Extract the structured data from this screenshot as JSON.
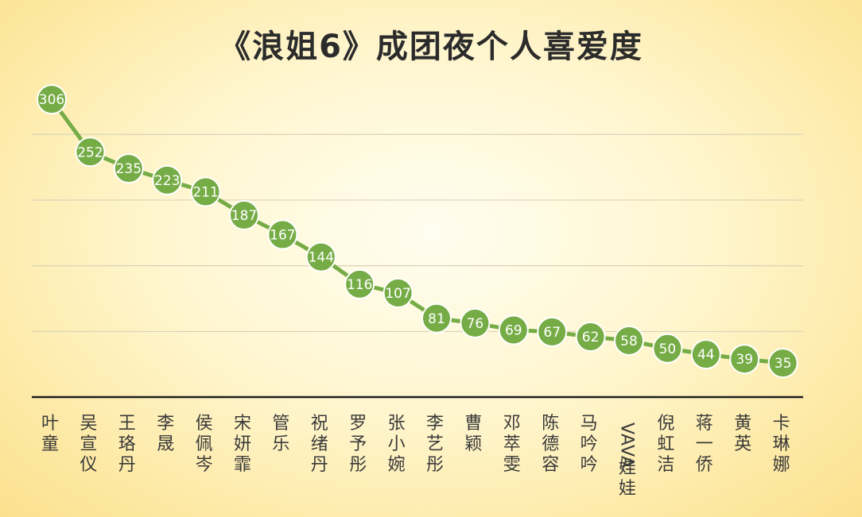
{
  "chart_data": {
    "type": "line",
    "title": "《浪姐6》成团夜个人喜爱度",
    "xlabel": "",
    "ylabel": "",
    "ylim": [
      0,
      320
    ],
    "grid": true,
    "line_color": "#76ac46",
    "marker_color": "#76ac46",
    "categories": [
      "叶童",
      "吴宣仪",
      "王珞丹",
      "李晟",
      "侯佩岑",
      "宋妍霏",
      "管乐",
      "祝绪丹",
      "罗予彤",
      "张小婉",
      "李艺彤",
      "曹颖",
      "邓萃雯",
      "陈德容",
      "马吟吟",
      "VAVA娃娃",
      "倪虹洁",
      "蒋一侨",
      "黄英",
      "卡琳娜"
    ],
    "values": [
      306,
      252,
      235,
      223,
      211,
      187,
      167,
      144,
      116,
      107,
      81,
      76,
      69,
      67,
      62,
      58,
      50,
      44,
      39,
      35
    ]
  }
}
